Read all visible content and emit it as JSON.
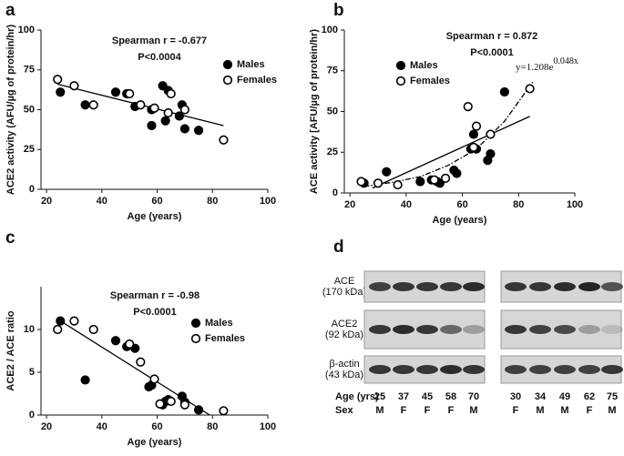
{
  "chart_data": [
    {
      "type": "scatter",
      "letter": "a",
      "title": "Spearman r = -0.677",
      "subtitle": "P<0.0004",
      "x_label": "Age (years)",
      "y_label": "ACE2 activity (AFU/µg of protein/hr)",
      "xlim": [
        18,
        100
      ],
      "xticks": [
        20,
        40,
        60,
        80,
        100
      ],
      "ylim": [
        0,
        100
      ],
      "yticks": [
        0,
        25,
        50,
        75,
        100
      ],
      "series": [
        {
          "name": "Males",
          "color": "#000000",
          "filled": true,
          "x": [
            25,
            34,
            45,
            49,
            52,
            58,
            58,
            62,
            64,
            63,
            68,
            69,
            70,
            75
          ],
          "values": [
            61,
            53,
            61,
            60,
            52,
            50,
            40,
            65,
            62,
            43,
            46,
            53,
            38,
            37
          ]
        },
        {
          "name": "Females",
          "color": "#000000",
          "filled": false,
          "x": [
            24,
            30,
            37,
            50,
            54,
            59,
            64,
            65,
            70,
            84
          ],
          "values": [
            69,
            65,
            53,
            60,
            53,
            51,
            48,
            60,
            50,
            31
          ]
        }
      ],
      "fit": {
        "x": [
          24,
          84
        ],
        "values": [
          66,
          40
        ]
      }
    },
    {
      "type": "scatter",
      "letter": "b",
      "title": "Spearman r = 0.872",
      "subtitle": "P<0.0001",
      "x_label": "Age (years)",
      "y_label": "ACE activity [AFU/µg of protein/hr)",
      "equation": {
        "base": "y=1.208e",
        "exponent": "0.048x"
      },
      "xlim": [
        18,
        100
      ],
      "xticks": [
        20,
        40,
        60,
        80,
        100
      ],
      "ylim": [
        0,
        100
      ],
      "yticks": [
        0,
        25,
        50,
        75,
        100
      ],
      "series": [
        {
          "name": "Males",
          "color": "#000000",
          "filled": true,
          "x": [
            25,
            33,
            45,
            49,
            51,
            52,
            57,
            58,
            63,
            64,
            65,
            69,
            70,
            75
          ],
          "values": [
            6,
            13,
            7,
            8,
            7,
            6,
            14,
            12,
            27,
            36,
            27,
            20,
            24,
            62
          ]
        },
        {
          "name": "Females",
          "color": "#000000",
          "filled": false,
          "x": [
            24,
            30,
            37,
            50,
            54,
            62,
            64,
            65,
            70,
            84
          ],
          "values": [
            7,
            6,
            5,
            8,
            9,
            53,
            28,
            41,
            36,
            64
          ]
        }
      ],
      "fit": {
        "x": [
          28,
          84
        ],
        "values": [
          3,
          47
        ]
      },
      "curve": {
        "x": [
          25,
          35,
          45,
          55,
          65,
          75,
          85
        ],
        "values": [
          4,
          6.5,
          10,
          17,
          27,
          44,
          68
        ]
      }
    },
    {
      "type": "scatter",
      "letter": "c",
      "title": "Spearman r = -0.98",
      "subtitle": "P<0.0001",
      "x_label": "Age (years)",
      "y_label": "ACE2 / ACE ratio",
      "xlim": [
        18,
        100
      ],
      "xticks": [
        20,
        40,
        60,
        80,
        100
      ],
      "ylim": [
        0,
        15
      ],
      "yticks": [
        0,
        5,
        10
      ],
      "series": [
        {
          "name": "Males",
          "color": "#000000",
          "filled": true,
          "x": [
            25,
            34,
            45,
            49,
            52,
            58,
            57,
            62,
            63,
            64,
            69,
            70,
            75
          ],
          "values": [
            11,
            4.1,
            8.7,
            8,
            7.8,
            3.5,
            3.3,
            1.2,
            1.6,
            1.8,
            2.2,
            1.5,
            0.6
          ]
        },
        {
          "name": "Females",
          "color": "#000000",
          "filled": false,
          "x": [
            24,
            30,
            37,
            50,
            54,
            59,
            61,
            65,
            70,
            84
          ],
          "values": [
            10,
            11,
            10,
            8.3,
            6.2,
            4.2,
            1.3,
            1.6,
            1.2,
            0.5
          ]
        }
      ],
      "fit": {
        "x": [
          25,
          79
        ],
        "values": [
          11,
          0
        ]
      }
    }
  ],
  "blot": {
    "letter": "d",
    "rows": [
      "ACE\n(170 kDa)",
      "ACE2\n(92 kDa)",
      "β-actin\n(43 kDa)"
    ],
    "age_label": "Age (yrs)",
    "sex_label": "Sex",
    "ages": [
      "25",
      "37",
      "45",
      "58",
      "70",
      "30",
      "34",
      "49",
      "62",
      "75"
    ],
    "sexes": [
      "M",
      "F",
      "F",
      "F",
      "M",
      "F",
      "M",
      "M",
      "F",
      "M"
    ]
  }
}
